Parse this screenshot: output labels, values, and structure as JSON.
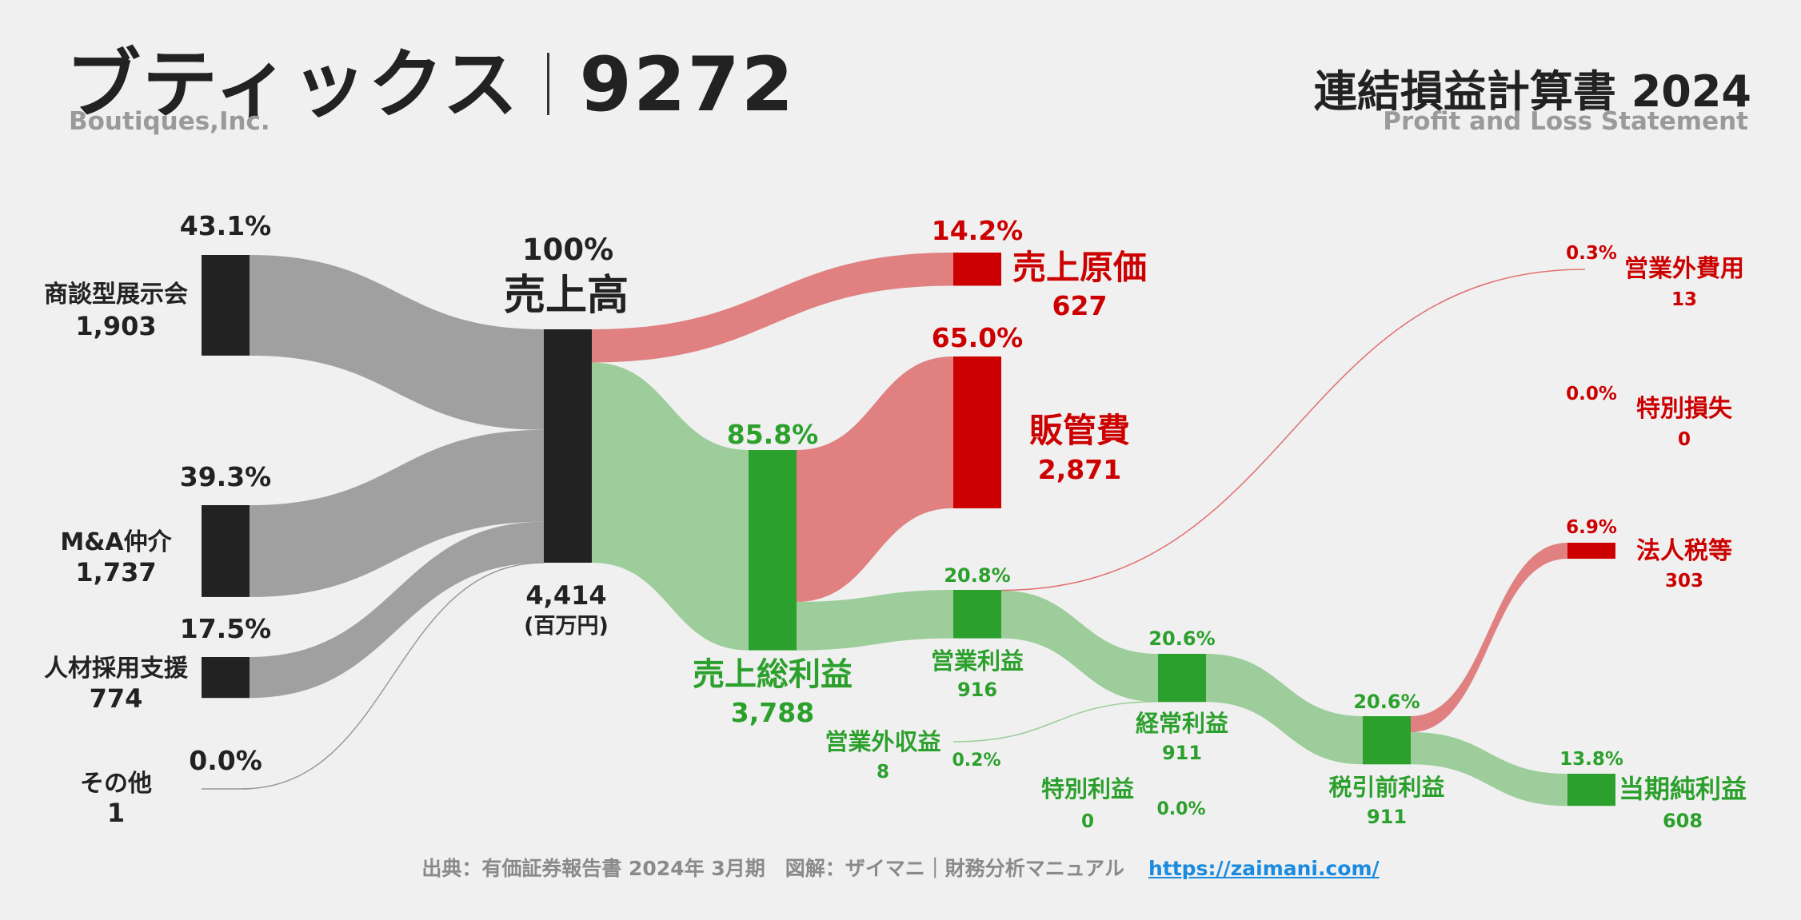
{
  "header": {
    "company_jp": "ブティックス",
    "ticker": "9272",
    "company_en": "Boutiques,Inc.",
    "statement_jp": "連結損益計算書 2024",
    "statement_en": "Profit and Loss Statement"
  },
  "footer": {
    "source": "出典：有価証券報告書 2024年 3月期　図解：ザイマニ｜財務分析マニュアル",
    "url": "https://zaimani.com/"
  },
  "colors": {
    "segment": "#222222",
    "profit": "#2ca02c",
    "profit_flow": "#9ccd9a",
    "cost": "#cc0000",
    "cost_flow": "#e08080",
    "inflow": "#a0a0a0"
  },
  "chart_data": {
    "type": "sankey",
    "unit": "(百万円)",
    "nodes": [
      {
        "id": "seg1",
        "label": "商談型展示会",
        "value": 1903,
        "pct": "43.1%",
        "kind": "segment"
      },
      {
        "id": "seg2",
        "label": "M&A仲介",
        "value": 1737,
        "pct": "39.3%",
        "kind": "segment"
      },
      {
        "id": "seg3",
        "label": "人材採用支援",
        "value": 774,
        "pct": "17.5%",
        "kind": "segment"
      },
      {
        "id": "seg4",
        "label": "その他",
        "value": 1,
        "pct": "0.0%",
        "kind": "segment"
      },
      {
        "id": "rev",
        "label": "売上高",
        "value": 4414,
        "display": "4,414",
        "pct": "100%",
        "kind": "segment"
      },
      {
        "id": "cogs",
        "label": "売上原価",
        "value": 627,
        "pct": "14.2%",
        "kind": "cost"
      },
      {
        "id": "gross",
        "label": "売上総利益",
        "value": 3788,
        "pct": "85.8%",
        "kind": "profit"
      },
      {
        "id": "sga",
        "label": "販管費",
        "value": 2871,
        "pct": "65.0%",
        "kind": "cost"
      },
      {
        "id": "op",
        "label": "営業利益",
        "value": 916,
        "pct": "20.8%",
        "kind": "profit"
      },
      {
        "id": "nonopinc",
        "label": "営業外収益",
        "value": 8,
        "pct": "0.2%",
        "kind": "profit"
      },
      {
        "id": "nonopexp",
        "label": "営業外費用",
        "value": 13,
        "pct": "0.3%",
        "kind": "cost"
      },
      {
        "id": "ord",
        "label": "経常利益",
        "value": 911,
        "pct": "20.6%",
        "kind": "profit"
      },
      {
        "id": "extinc",
        "label": "特別利益",
        "value": 0,
        "pct": "0.0%",
        "kind": "profit"
      },
      {
        "id": "extloss",
        "label": "特別損失",
        "value": 0,
        "pct": "0.0%",
        "kind": "cost"
      },
      {
        "id": "pretax",
        "label": "税引前利益",
        "value": 911,
        "pct": "20.6%",
        "kind": "profit"
      },
      {
        "id": "tax",
        "label": "法人税等",
        "value": 303,
        "pct": "6.9%",
        "kind": "cost"
      },
      {
        "id": "net",
        "label": "当期純利益",
        "value": 608,
        "pct": "13.8%",
        "kind": "profit"
      }
    ],
    "links": [
      {
        "source": "seg1",
        "target": "rev",
        "value": 1903
      },
      {
        "source": "seg2",
        "target": "rev",
        "value": 1737
      },
      {
        "source": "seg3",
        "target": "rev",
        "value": 774
      },
      {
        "source": "seg4",
        "target": "rev",
        "value": 1
      },
      {
        "source": "rev",
        "target": "cogs",
        "value": 627
      },
      {
        "source": "rev",
        "target": "gross",
        "value": 3788
      },
      {
        "source": "gross",
        "target": "sga",
        "value": 2871
      },
      {
        "source": "gross",
        "target": "op",
        "value": 916
      },
      {
        "source": "op",
        "target": "nonopexp",
        "value": 13
      },
      {
        "source": "op",
        "target": "ord",
        "value": 911
      },
      {
        "source": "nonopinc",
        "target": "ord",
        "value": 8
      },
      {
        "source": "ord",
        "target": "pretax",
        "value": 911
      },
      {
        "source": "pretax",
        "target": "tax",
        "value": 303
      },
      {
        "source": "pretax",
        "target": "net",
        "value": 608
      }
    ]
  }
}
